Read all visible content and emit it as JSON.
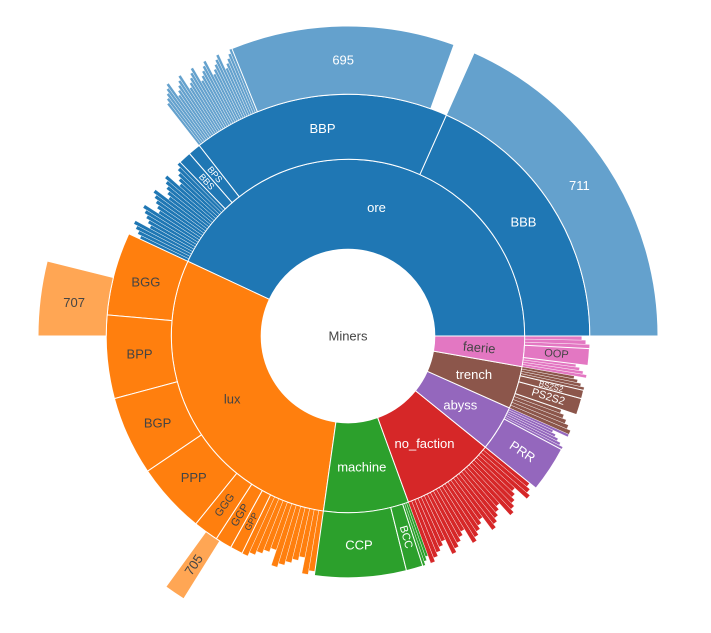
{
  "chart_data": {
    "type": "sunburst",
    "root": {
      "label": "Miners"
    },
    "colors": {
      "ore": "#1f77b4",
      "ore_light": "#64a1cd",
      "lux": "#ff7f0e",
      "lux_light": "#ffa654",
      "machine": "#2ca02c",
      "no_faction": "#d62728",
      "abyss": "#9467bd",
      "trench": "#8c564b",
      "faerie": "#e377c2",
      "outline": "#ffffff"
    },
    "rings": [
      {
        "inner": 0.28,
        "outer": 0.57
      },
      {
        "inner": 0.57,
        "outer": 0.78
      },
      {
        "inner": 0.78,
        "outer": 1.0
      }
    ],
    "wedges": [
      {
        "id": "ore",
        "label": "ore",
        "level": 1,
        "start": 0,
        "end": 155,
        "color": "ore"
      },
      {
        "id": "lux",
        "label": "lux",
        "level": 1,
        "start": 155,
        "end": 262,
        "color": "lux"
      },
      {
        "id": "machine",
        "label": "machine",
        "level": 1,
        "start": 262,
        "end": 290,
        "color": "machine"
      },
      {
        "id": "no_faction",
        "label": "no_faction",
        "level": 1,
        "start": 290,
        "end": 321,
        "color": "no_faction"
      },
      {
        "id": "abyss",
        "label": "abyss",
        "level": 1,
        "start": 321,
        "end": 336,
        "color": "abyss"
      },
      {
        "id": "trench",
        "label": "trench",
        "level": 1,
        "start": 336,
        "end": 350,
        "color": "trench"
      },
      {
        "id": "faerie",
        "label": "faerie",
        "level": 1,
        "start": 350,
        "end": 360,
        "color": "faerie"
      },
      {
        "id": "BBB",
        "label": "BBB",
        "level": 2,
        "start": 0,
        "end": 66,
        "color": "ore"
      },
      {
        "id": "BBP",
        "label": "BBP",
        "level": 2,
        "start": 66,
        "end": 128,
        "color": "ore"
      },
      {
        "id": "BPS",
        "label": "BPS",
        "level": 2,
        "start": 128,
        "end": 131,
        "color": "ore",
        "labelSize": 9
      },
      {
        "id": "BBS",
        "label": "BBS",
        "level": 2,
        "start": 131,
        "end": 134,
        "color": "ore",
        "labelSize": 9
      },
      {
        "id": "BGG",
        "label": "BGG",
        "level": 2,
        "start": 155,
        "end": 175,
        "color": "lux"
      },
      {
        "id": "BPP",
        "label": "BPP",
        "level": 2,
        "start": 175,
        "end": 195,
        "color": "lux"
      },
      {
        "id": "BGP",
        "label": "BGP",
        "level": 2,
        "start": 195,
        "end": 214,
        "color": "lux"
      },
      {
        "id": "PPP",
        "label": "PPP",
        "level": 2,
        "start": 214,
        "end": 231,
        "color": "lux"
      },
      {
        "id": "GGG",
        "label": "GGG",
        "level": 2,
        "start": 231,
        "end": 237,
        "color": "lux",
        "labelSize": 11
      },
      {
        "id": "GGP",
        "label": "GGP",
        "level": 2,
        "start": 237,
        "end": 241,
        "color": "lux",
        "labelSize": 11
      },
      {
        "id": "GPP",
        "label": "GPP",
        "level": 2,
        "start": 241,
        "end": 244,
        "color": "lux",
        "labelSize": 9
      },
      {
        "id": "CCP",
        "label": "CCP",
        "level": 2,
        "start": 262,
        "end": 284,
        "color": "machine"
      },
      {
        "id": "BCC",
        "label": "BCC",
        "level": 2,
        "start": 284,
        "end": 288,
        "color": "machine",
        "labelSize": 11
      },
      {
        "id": "PRR",
        "label": "PRR",
        "level": 2,
        "start": 321,
        "end": 332,
        "color": "abyss"
      },
      {
        "id": "PS2S2",
        "label": "PS2S2",
        "level": 2,
        "start": 341,
        "end": 345,
        "color": "trench",
        "labelSize": 11
      },
      {
        "id": "BS2S2",
        "label": "BS2S2",
        "level": 2,
        "start": 345,
        "end": 347,
        "color": "trench",
        "labelSize": 8
      },
      {
        "id": "OOP",
        "label": "OOP",
        "level": 2,
        "start": 353,
        "end": 357,
        "color": "faerie",
        "labelSize": 11
      },
      {
        "id": "BBB_711",
        "label": "711",
        "level": 3,
        "start": 0,
        "end": 66,
        "color": "ore_light"
      },
      {
        "id": "BBP_695",
        "label": "695",
        "level": 3,
        "start": 70,
        "end": 112,
        "color": "ore_light"
      },
      {
        "id": "BGG_707",
        "label": "707",
        "level": 3,
        "start": 166,
        "end": 180,
        "color": "lux_light"
      },
      {
        "id": "PPP_705",
        "label": "705",
        "level": 3,
        "start": 234,
        "end": 238,
        "color": "lux_light"
      }
    ],
    "thin_sectors": [
      {
        "parent": "ore",
        "level": 2,
        "start": 134,
        "end": 155,
        "count": 24,
        "color": "ore"
      },
      {
        "parent": "ore",
        "level": 3,
        "start": 112,
        "end": 128,
        "count": 30,
        "color": "ore_light"
      },
      {
        "parent": "lux",
        "level": 2,
        "start": 244,
        "end": 262,
        "count": 12,
        "color": "lux"
      },
      {
        "parent": "machine",
        "level": 2,
        "start": 288,
        "end": 290,
        "count": 3,
        "color": "machine"
      },
      {
        "parent": "no_faction",
        "level": 2,
        "start": 290,
        "end": 321,
        "count": 28,
        "color": "no_faction"
      },
      {
        "parent": "abyss",
        "level": 2,
        "start": 332,
        "end": 336,
        "count": 6,
        "color": "abyss"
      },
      {
        "parent": "trench",
        "level": 2,
        "start": 336,
        "end": 341,
        "count": 5,
        "color": "trench"
      },
      {
        "parent": "trench",
        "level": 2,
        "start": 347,
        "end": 350,
        "count": 4,
        "color": "trench"
      },
      {
        "parent": "faerie",
        "level": 2,
        "start": 350,
        "end": 353,
        "count": 4,
        "color": "faerie"
      },
      {
        "parent": "faerie",
        "level": 2,
        "start": 357,
        "end": 360,
        "count": 3,
        "color": "faerie"
      }
    ]
  }
}
